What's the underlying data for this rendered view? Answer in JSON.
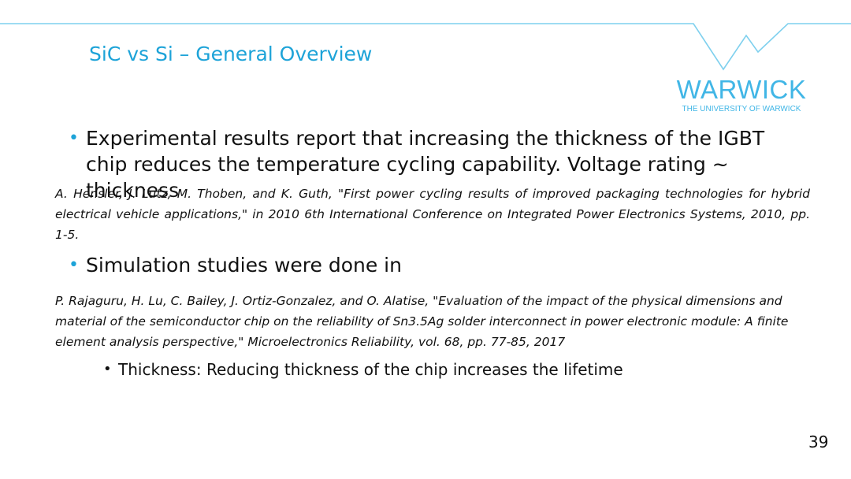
{
  "slide": {
    "title": "SiC vs Si – General Overview",
    "logo": {
      "wordmark": "WARWICK",
      "subtitle": "THE UNIVERSITY OF WARWICK"
    },
    "bullets": [
      {
        "text": "Experimental results report that increasing the thickness of the IGBT chip reduces the temperature cycling capability. Voltage rating ~ thickness",
        "reference": "A. Hensler, J. Lutz, M. Thoben, and K. Guth, \"First power cycling results of improved packaging technologies for hybrid electrical vehicle applications,\" in 2010 6th International Conference on Integrated Power Electronics Systems, 2010, pp. 1-5."
      },
      {
        "text": "Simulation studies were done in",
        "reference": "P. Rajaguru, H. Lu, C. Bailey, J. Ortiz-Gonzalez, and O. Alatise, \"Evaluation of the impact of the physical dimensions and material of the semiconductor chip on the reliability of Sn3.5Ag solder interconnect in power electronic module: A finite element analysis perspective,\" Microelectronics Reliability, vol. 68, pp. 77-85, 2017",
        "sub_bullets": [
          "Thickness: Reducing thickness of the chip increases the lifetime"
        ]
      }
    ],
    "bullet_glyph": "•",
    "page_number": "39",
    "colors": {
      "accent": "#1da3d8",
      "logo": "#41b6e6",
      "header_line": "#7fd0ee"
    }
  }
}
